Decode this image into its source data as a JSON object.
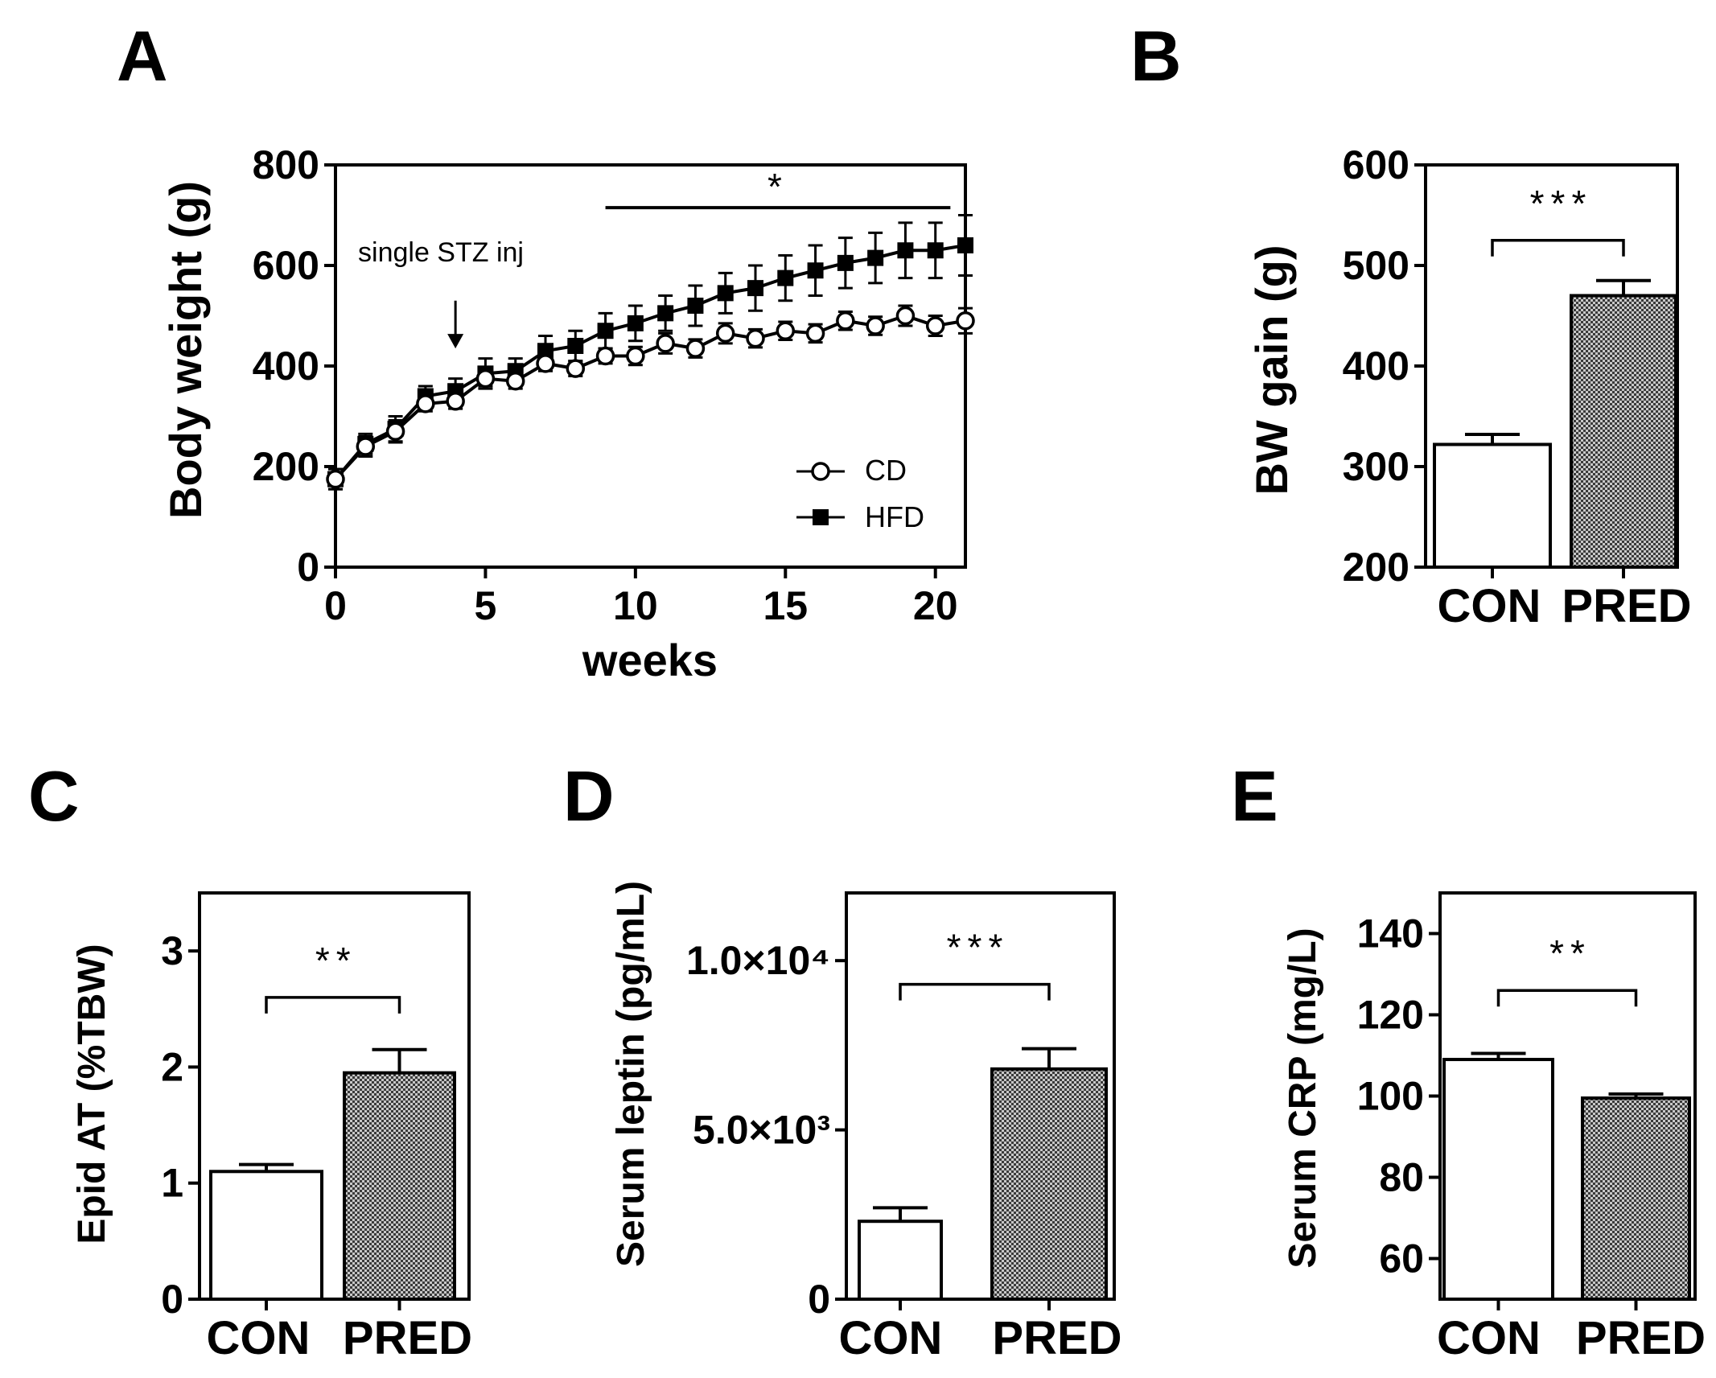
{
  "panel_labels": [
    "A",
    "B",
    "C",
    "D",
    "E"
  ],
  "annotation": {
    "text": "single STZ inj"
  },
  "chart_data": [
    {
      "panel": "A",
      "type": "line",
      "xlabel": "weeks",
      "ylabel": "Body weight (g)",
      "xlim": [
        0,
        21
      ],
      "ylim": [
        0,
        800
      ],
      "xticks": [
        "0",
        "5",
        "10",
        "15",
        "20"
      ],
      "yticks": [
        "0",
        "200",
        "400",
        "600",
        "800"
      ],
      "x": [
        0,
        1,
        2,
        3,
        4,
        5,
        6,
        7,
        8,
        9,
        10,
        11,
        12,
        13,
        14,
        15,
        16,
        17,
        18,
        19,
        20,
        21
      ],
      "series": [
        {
          "name": "CD",
          "marker": "open-circle",
          "values": [
            175,
            240,
            270,
            325,
            330,
            375,
            370,
            405,
            395,
            420,
            420,
            445,
            435,
            465,
            455,
            470,
            465,
            490,
            480,
            500,
            480,
            490
          ],
          "errors": [
            20,
            20,
            22,
            15,
            15,
            15,
            15,
            15,
            15,
            15,
            18,
            20,
            18,
            20,
            18,
            18,
            18,
            18,
            18,
            20,
            20,
            25
          ]
        },
        {
          "name": "HFD",
          "marker": "filled-square",
          "values": [
            175,
            245,
            275,
            340,
            350,
            385,
            390,
            430,
            440,
            470,
            485,
            505,
            520,
            545,
            555,
            575,
            590,
            605,
            615,
            630,
            630,
            640
          ],
          "errors": [
            20,
            20,
            25,
            20,
            25,
            30,
            25,
            30,
            30,
            35,
            35,
            35,
            40,
            40,
            45,
            45,
            50,
            50,
            50,
            55,
            55,
            60
          ]
        }
      ],
      "significance": {
        "label": "*",
        "x_range": [
          9,
          20.5
        ],
        "y": 715
      },
      "arrow_annotation": {
        "x": 4,
        "y_from": 530,
        "y_to": 435
      },
      "legend": [
        "CD",
        "HFD"
      ]
    },
    {
      "panel": "B",
      "type": "bar",
      "ylabel": "BW gain (g)",
      "ylim": [
        200,
        600
      ],
      "yticks": [
        "200",
        "300",
        "400",
        "500",
        "600"
      ],
      "categories": [
        "CON",
        "PRED"
      ],
      "values": [
        322,
        470
      ],
      "errors": [
        10,
        15
      ],
      "significance": {
        "label": "***",
        "y": 525
      }
    },
    {
      "panel": "C",
      "type": "bar",
      "ylabel": "Epid  AT (%TBW)",
      "ylim": [
        0,
        3.5
      ],
      "yticks": [
        "0",
        "1",
        "2",
        "3"
      ],
      "categories": [
        "CON",
        "PRED"
      ],
      "values": [
        1.1,
        1.95
      ],
      "errors": [
        0.06,
        0.2
      ],
      "significance": {
        "label": "**",
        "y": 2.6
      }
    },
    {
      "panel": "D",
      "type": "bar",
      "ylabel": "Serum leptin (pg/mL)",
      "ylim": [
        0,
        12000
      ],
      "yticks": [
        "0",
        "5.0×10³",
        "1.0×10⁴"
      ],
      "categories": [
        "CON",
        "PRED"
      ],
      "values": [
        2300,
        6800
      ],
      "errors": [
        400,
        600
      ],
      "significance": {
        "label": "***",
        "y": 9300
      }
    },
    {
      "panel": "E",
      "type": "bar",
      "ylabel": "Serum CRP (mg/L)",
      "ylim": [
        50,
        150
      ],
      "yticks": [
        "60",
        "80",
        "100",
        "120",
        "140"
      ],
      "categories": [
        "CON",
        "PRED"
      ],
      "values": [
        109,
        99.5
      ],
      "errors": [
        1.5,
        1
      ],
      "significance": {
        "label": "**",
        "y": 126
      }
    }
  ]
}
